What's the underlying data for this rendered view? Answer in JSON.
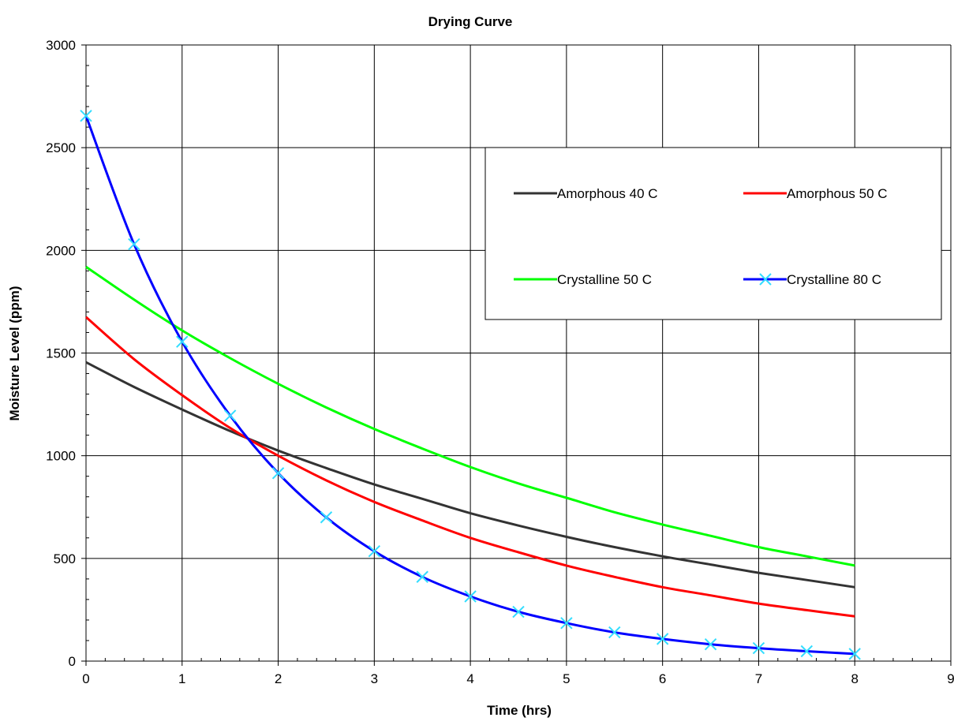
{
  "chart_data": {
    "type": "line",
    "title": "Drying Curve",
    "xlabel": "Time (hrs)",
    "ylabel": "Moisture Level (ppm)",
    "xlim": [
      0,
      9
    ],
    "ylim": [
      0,
      3000
    ],
    "xticks": [
      "0",
      "1",
      "2",
      "3",
      "4",
      "5",
      "6",
      "7",
      "8",
      "9"
    ],
    "yticks": [
      "0",
      "500",
      "1000",
      "1500",
      "2000",
      "2500",
      "3000"
    ],
    "grid": true,
    "legend_position": "upper-right",
    "series": [
      {
        "name": "Amorphous 40 C",
        "color": "#333333",
        "marker": "none",
        "x": [
          0,
          0.5,
          1,
          1.5,
          2,
          2.5,
          3,
          3.5,
          4,
          4.5,
          5,
          5.5,
          6,
          6.5,
          7,
          7.5,
          8
        ],
        "y": [
          1455,
          1335,
          1225,
          1120,
          1025,
          940,
          860,
          790,
          720,
          660,
          605,
          555,
          510,
          470,
          430,
          395,
          360
        ]
      },
      {
        "name": "Amorphous 50 C",
        "color": "#ff0000",
        "marker": "none",
        "x": [
          0,
          0.5,
          1,
          1.5,
          2,
          2.5,
          3,
          3.5,
          4,
          4.5,
          5,
          5.5,
          6,
          6.5,
          7,
          7.5,
          8
        ],
        "y": [
          1675,
          1470,
          1295,
          1135,
          1000,
          880,
          775,
          685,
          600,
          530,
          465,
          410,
          360,
          320,
          280,
          248,
          218
        ]
      },
      {
        "name": "Crystalline 50 C",
        "color": "#00ff00",
        "marker": "none",
        "x": [
          0,
          0.5,
          1,
          1.5,
          2,
          2.5,
          3,
          3.5,
          4,
          4.5,
          5,
          5.5,
          6,
          6.5,
          7,
          7.5,
          8
        ],
        "y": [
          1920,
          1760,
          1610,
          1475,
          1350,
          1235,
          1130,
          1035,
          945,
          865,
          795,
          725,
          665,
          610,
          555,
          510,
          465
        ]
      },
      {
        "name": "Crystalline 80 C",
        "color": "#0000ff",
        "marker": "x",
        "marker_color": "#33ddff",
        "x": [
          0,
          0.5,
          1,
          1.5,
          2,
          2.5,
          3,
          3.5,
          4,
          4.5,
          5,
          5.5,
          6,
          6.5,
          7,
          7.5,
          8
        ],
        "y": [
          2655,
          2030,
          1555,
          1195,
          915,
          700,
          535,
          410,
          315,
          240,
          185,
          140,
          108,
          82,
          63,
          48,
          35
        ]
      }
    ]
  }
}
